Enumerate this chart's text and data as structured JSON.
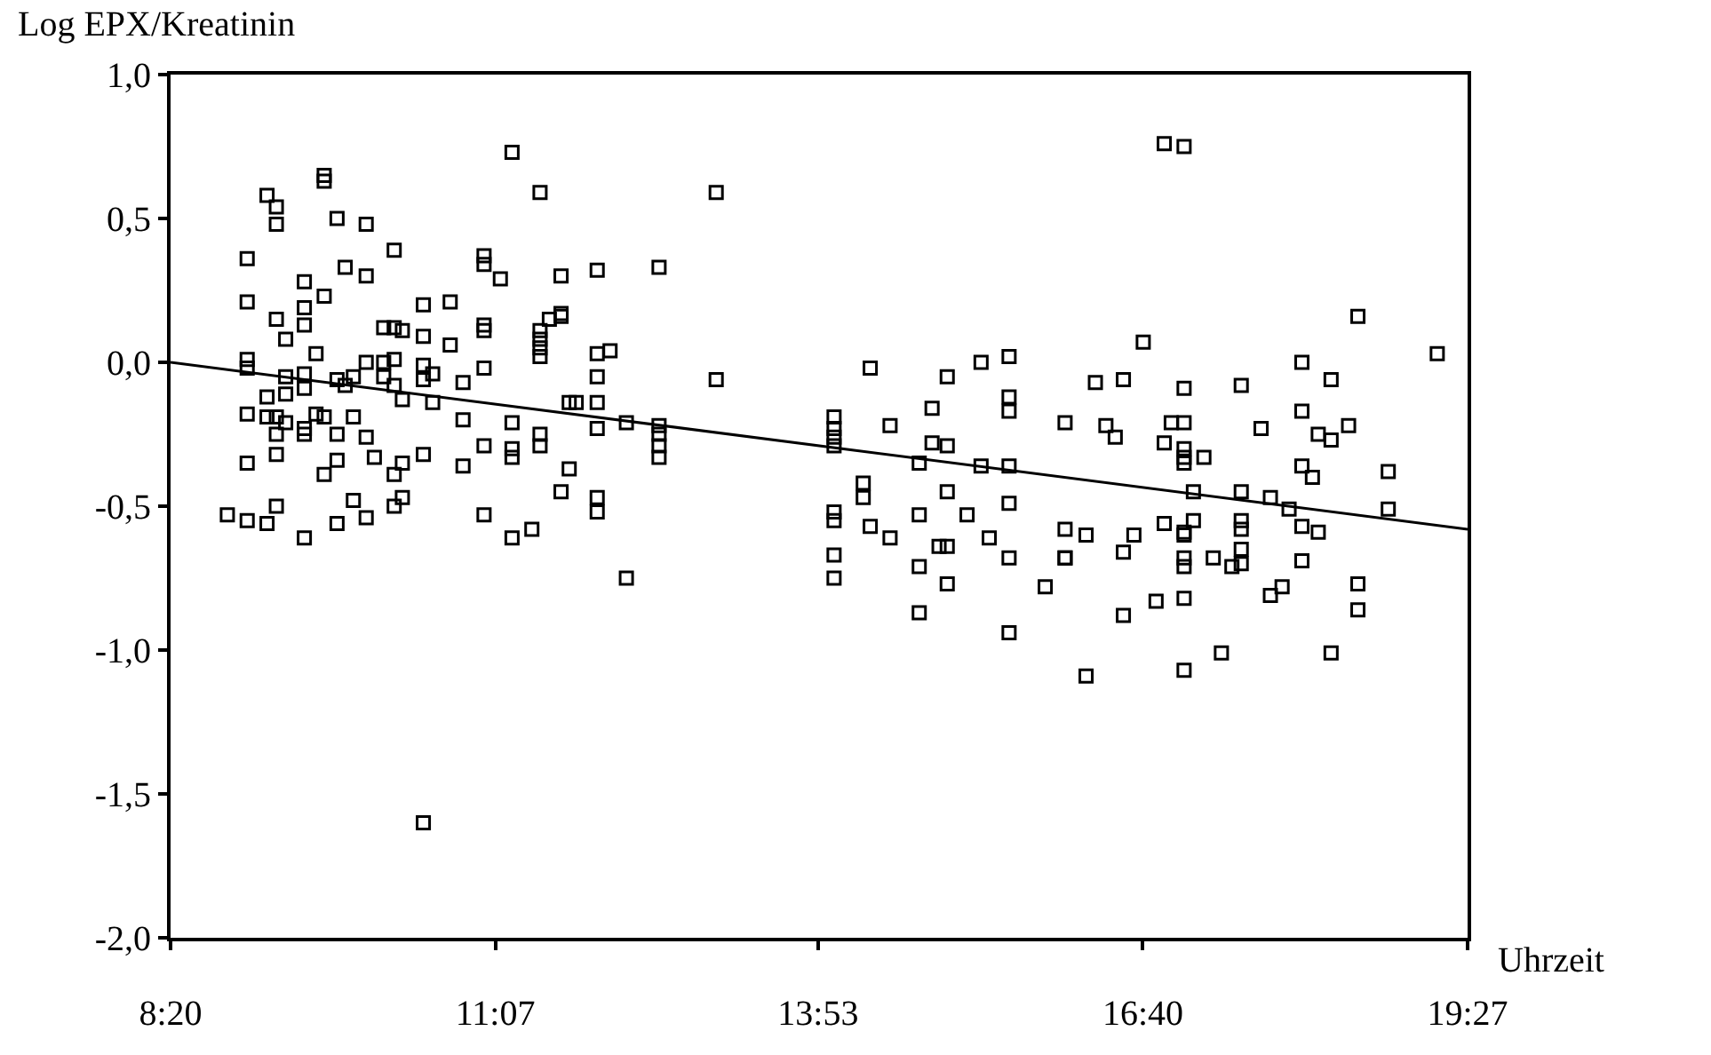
{
  "chart_data": {
    "type": "scatter",
    "xlabel": "Uhrzeit",
    "ylabel": "Log EPX/Kreatinin",
    "xlim": [
      8.3333,
      19.45
    ],
    "ylim": [
      -2.0,
      1.0
    ],
    "xticks": [
      {
        "value": 8.3333,
        "label": "8:20"
      },
      {
        "value": 11.1167,
        "label": "11:07"
      },
      {
        "value": 13.8833,
        "label": "13:53"
      },
      {
        "value": 16.6667,
        "label": "16:40"
      },
      {
        "value": 19.45,
        "label": "19:27"
      }
    ],
    "yticks": [
      {
        "value": -2.0,
        "label": "-2,0"
      },
      {
        "value": -1.5,
        "label": "-1,5"
      },
      {
        "value": -1.0,
        "label": "-1,0"
      },
      {
        "value": -0.5,
        "label": "-0,5"
      },
      {
        "value": 0.0,
        "label": "0,0"
      },
      {
        "value": 0.5,
        "label": "0,5"
      },
      {
        "value": 1.0,
        "label": "1,0"
      }
    ],
    "series": [
      {
        "color": "#000000",
        "marker": "square",
        "x": [
          8.82,
          8.99,
          8.99,
          8.99,
          8.99,
          8.99,
          8.99,
          8.99,
          9.16,
          9.16,
          9.16,
          9.16,
          9.24,
          9.24,
          9.24,
          9.24,
          9.24,
          9.24,
          9.24,
          9.32,
          9.32,
          9.32,
          9.32,
          9.48,
          9.48,
          9.48,
          9.48,
          9.48,
          9.48,
          9.48,
          9.48,
          9.58,
          9.58,
          9.65,
          9.65,
          9.65,
          9.65,
          9.65,
          9.76,
          9.76,
          9.76,
          9.76,
          9.76,
          9.83,
          9.83,
          9.9,
          9.9,
          9.9,
          10.01,
          10.01,
          10.01,
          10.01,
          10.01,
          10.08,
          10.16,
          10.16,
          10.16,
          10.25,
          10.25,
          10.25,
          10.25,
          10.25,
          10.25,
          10.32,
          10.32,
          10.32,
          10.32,
          10.5,
          10.5,
          10.5,
          10.5,
          10.5,
          10.5,
          10.58,
          10.58,
          10.73,
          10.73,
          10.84,
          10.84,
          10.84,
          11.02,
          11.02,
          11.02,
          11.02,
          11.02,
          11.02,
          11.02,
          11.16,
          11.26,
          11.26,
          11.26,
          11.26,
          11.26,
          11.43,
          11.5,
          11.5,
          11.5,
          11.5,
          11.5,
          11.5,
          11.5,
          11.58,
          11.68,
          11.68,
          11.68,
          11.68,
          11.75,
          11.75,
          11.81,
          11.99,
          11.99,
          11.99,
          11.99,
          11.99,
          11.99,
          11.99,
          12.1,
          12.24,
          12.24,
          12.52,
          12.52,
          12.52,
          12.52,
          12.52,
          13.01,
          13.01,
          14.02,
          14.02,
          14.02,
          14.02,
          14.02,
          14.02,
          14.02,
          14.02,
          14.27,
          14.27,
          14.33,
          14.33,
          14.5,
          14.5,
          14.75,
          14.75,
          14.75,
          14.75,
          14.86,
          14.86,
          14.92,
          14.99,
          14.99,
          14.99,
          14.99,
          14.99,
          15.16,
          15.28,
          15.28,
          15.35,
          15.52,
          15.52,
          15.52,
          15.52,
          15.52,
          15.52,
          15.52,
          15.83,
          16.0,
          16.0,
          16.0,
          16.0,
          16.18,
          16.18,
          16.26,
          16.35,
          16.43,
          16.5,
          16.5,
          16.5,
          16.59,
          16.67,
          16.78,
          16.85,
          16.85,
          16.85,
          16.91,
          17.02,
          17.02,
          17.02,
          17.02,
          17.02,
          17.02,
          17.02,
          17.02,
          17.02,
          17.02,
          17.02,
          17.02,
          17.1,
          17.1,
          17.19,
          17.27,
          17.34,
          17.43,
          17.51,
          17.51,
          17.51,
          17.51,
          17.51,
          17.51,
          17.68,
          17.76,
          17.76,
          17.86,
          17.92,
          18.03,
          18.03,
          18.03,
          18.03,
          18.03,
          18.12,
          18.17,
          18.17,
          18.28,
          18.28,
          18.28,
          18.43,
          18.51,
          18.51,
          18.51,
          18.77,
          18.77,
          19.19
        ],
        "values": [
          -0.53,
          0.36,
          0.21,
          0.01,
          -0.02,
          -0.18,
          -0.35,
          -0.55,
          0.58,
          -0.12,
          -0.19,
          -0.56,
          0.54,
          0.48,
          0.15,
          -0.19,
          -0.25,
          -0.32,
          -0.5,
          0.08,
          -0.05,
          -0.11,
          -0.21,
          0.28,
          0.19,
          0.13,
          -0.04,
          -0.09,
          -0.23,
          -0.25,
          -0.61,
          0.03,
          -0.18,
          0.65,
          0.63,
          0.23,
          -0.19,
          -0.39,
          0.5,
          -0.06,
          -0.25,
          -0.34,
          -0.56,
          0.33,
          -0.08,
          -0.05,
          -0.19,
          -0.48,
          0.48,
          0.3,
          0.0,
          -0.26,
          -0.54,
          -0.33,
          0.12,
          0.0,
          -0.05,
          0.39,
          0.12,
          0.01,
          -0.08,
          -0.39,
          -0.5,
          0.11,
          -0.13,
          -0.35,
          -0.47,
          0.2,
          0.09,
          -0.01,
          -0.06,
          -0.32,
          -1.6,
          -0.04,
          -0.14,
          0.21,
          0.06,
          -0.07,
          -0.2,
          -0.36,
          0.37,
          0.34,
          0.13,
          0.11,
          -0.02,
          -0.29,
          -0.53,
          0.29,
          0.73,
          -0.21,
          -0.3,
          -0.33,
          -0.61,
          -0.58,
          0.59,
          0.11,
          0.08,
          0.05,
          0.02,
          -0.25,
          -0.29,
          0.15,
          0.3,
          0.17,
          0.16,
          -0.45,
          -0.14,
          -0.37,
          -0.14,
          0.32,
          0.03,
          -0.05,
          -0.14,
          -0.23,
          -0.47,
          -0.52,
          0.04,
          -0.21,
          -0.75,
          0.33,
          -0.22,
          -0.25,
          -0.29,
          -0.33,
          0.59,
          -0.06,
          -0.19,
          -0.23,
          -0.26,
          -0.29,
          -0.52,
          -0.55,
          -0.67,
          -0.75,
          -0.42,
          -0.47,
          -0.02,
          -0.57,
          -0.22,
          -0.61,
          -0.35,
          -0.53,
          -0.71,
          -0.87,
          -0.16,
          -0.28,
          -0.64,
          -0.05,
          -0.29,
          -0.45,
          -0.64,
          -0.77,
          -0.53,
          0.0,
          -0.36,
          -0.61,
          0.02,
          -0.12,
          -0.17,
          -0.36,
          -0.49,
          -0.68,
          -0.94,
          -0.78,
          -0.21,
          -0.58,
          -0.68,
          -0.68,
          -0.6,
          -1.09,
          -0.07,
          -0.22,
          -0.26,
          -0.06,
          -0.66,
          -0.88,
          -0.6,
          0.07,
          -0.83,
          0.76,
          -0.28,
          -0.56,
          -0.21,
          0.75,
          -0.09,
          -0.21,
          -0.3,
          -0.33,
          -0.35,
          -0.59,
          -0.6,
          -0.68,
          -0.71,
          -0.82,
          -1.07,
          -0.45,
          -0.55,
          -0.33,
          -0.68,
          -1.01,
          -0.71,
          -0.08,
          -0.45,
          -0.55,
          -0.58,
          -0.65,
          -0.7,
          -0.23,
          -0.47,
          -0.81,
          -0.78,
          -0.51,
          0.0,
          -0.17,
          -0.36,
          -0.57,
          -0.69,
          -0.4,
          -0.25,
          -0.59,
          -0.06,
          -0.27,
          -1.01,
          -0.22,
          0.16,
          -0.77,
          -0.86,
          -0.38,
          -0.51,
          0.03
        ]
      },
      {
        "type": "line",
        "color": "#000000",
        "marker": "none",
        "line_style": "solid",
        "x": [
          8.3333,
          19.45
        ],
        "values": [
          0.0,
          -0.58
        ]
      }
    ]
  }
}
